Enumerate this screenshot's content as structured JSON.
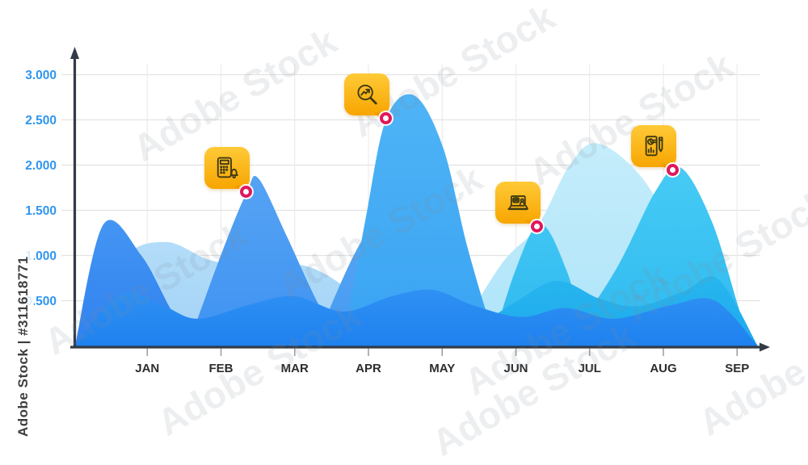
{
  "watermark": {
    "side_label": "Adobe Stock | #311618771",
    "ghost_text": "Adobe Stock"
  },
  "colors": {
    "axis": "#323b46",
    "grid_horizontal": "#e2e2e2",
    "grid_vertical": "#ececec",
    "y_tick_label": "#2f96ee",
    "x_tick_label": "#2c2c2c",
    "tick_mark": "#9b9b9b",
    "marker_ring": "#e0175b",
    "tooltip_gold_top": "#ffca38",
    "tooltip_gold_bottom": "#f7a500"
  },
  "chart_data": {
    "type": "area",
    "title": "",
    "x_labels": [
      "JAN",
      "FEB",
      "MAR",
      "APR",
      "MAY",
      "JUN",
      "JUL",
      "AUG",
      "SEP"
    ],
    "y_tick_labels": [
      "3.000",
      "2.500",
      "2.000",
      "1.500",
      "1.000",
      "0.500"
    ],
    "y_tick_values": [
      3.0,
      2.5,
      2.0,
      1.5,
      1.0,
      0.5
    ],
    "ylim": [
      0,
      3.3
    ],
    "xlim_months": [
      0,
      9.3
    ],
    "grid": true,
    "legend": false,
    "series": [
      {
        "name": "pale-blue-left",
        "color_top": "#b3ddf9",
        "color_bottom": "#a3d2f6",
        "points": [
          [
            0.02,
            0
          ],
          [
            0.65,
            0.95
          ],
          [
            1.25,
            1.15
          ],
          [
            1.85,
            0.95
          ],
          [
            2.51,
            0.86
          ],
          [
            3.17,
            0.88
          ],
          [
            3.83,
            0.55
          ],
          [
            4.43,
            0
          ]
        ]
      },
      {
        "name": "pale-cyan-july",
        "color_top": "#c5edfb",
        "color_bottom": "#aee4fa",
        "points": [
          [
            5.12,
            0
          ],
          [
            5.8,
            0.9
          ],
          [
            6.29,
            1.32
          ],
          [
            6.73,
            2.0
          ],
          [
            7.11,
            2.24
          ],
          [
            7.72,
            1.85
          ],
          [
            8.27,
            1.05
          ],
          [
            8.7,
            0.45
          ],
          [
            9.0,
            0
          ]
        ]
      },
      {
        "name": "blue-march-mid",
        "color_top": "#57a7f4",
        "color_bottom": "#4599f2",
        "points": [
          [
            3.26,
            0
          ],
          [
            3.94,
            1.2
          ],
          [
            4.48,
            1.42
          ],
          [
            5.14,
            1.0
          ],
          [
            5.85,
            0
          ]
        ]
      },
      {
        "name": "royal-blue-jan",
        "color_top": "#4495f3",
        "color_bottom": "#2f81ef",
        "points": [
          [
            0.02,
            0
          ],
          [
            0.41,
            1.35
          ],
          [
            0.92,
            1.0
          ],
          [
            1.36,
            0.35
          ],
          [
            1.72,
            0
          ]
        ]
      },
      {
        "name": "blue-feb",
        "color_top": "#55a3f4",
        "color_bottom": "#3e92f1",
        "points": [
          [
            1.55,
            0
          ],
          [
            2.02,
            1.05
          ],
          [
            2.35,
            1.7
          ],
          [
            2.51,
            1.85
          ],
          [
            2.9,
            1.2
          ],
          [
            3.33,
            0.45
          ],
          [
            3.7,
            0
          ]
        ]
      },
      {
        "name": "sky-blue-april",
        "color_top": "#4fb4f6",
        "color_bottom": "#39a3f3",
        "points": [
          [
            3.65,
            0
          ],
          [
            3.96,
            1.4
          ],
          [
            4.24,
            2.51
          ],
          [
            4.62,
            2.77
          ],
          [
            5.01,
            2.2
          ],
          [
            5.34,
            1.1
          ],
          [
            5.67,
            0.2
          ],
          [
            5.82,
            0
          ]
        ]
      },
      {
        "name": "cyan-june",
        "color_top": "#3fc6f3",
        "color_bottom": "#2fb7ef",
        "points": [
          [
            5.67,
            0
          ],
          [
            6.0,
            0.85
          ],
          [
            6.33,
            1.35
          ],
          [
            6.68,
            0.85
          ],
          [
            6.98,
            0
          ]
        ]
      },
      {
        "name": "cyan-august",
        "color_top": "#46cbf4",
        "color_bottom": "#2fb9f0",
        "points": [
          [
            6.68,
            0
          ],
          [
            7.36,
            0.85
          ],
          [
            7.9,
            1.72
          ],
          [
            8.24,
            1.97
          ],
          [
            8.67,
            1.35
          ],
          [
            9.07,
            0.3
          ],
          [
            9.28,
            0
          ]
        ]
      },
      {
        "name": "deep-cyan-bottom-right",
        "color_top": "#27b6ef",
        "color_bottom": "#1fa9ec",
        "points": [
          [
            5.1,
            0
          ],
          [
            6.02,
            0.5
          ],
          [
            6.57,
            0.72
          ],
          [
            7.14,
            0.52
          ],
          [
            7.66,
            0.44
          ],
          [
            8.27,
            0.6
          ],
          [
            8.74,
            0.74
          ],
          [
            9.28,
            0
          ]
        ]
      },
      {
        "name": "bright-blue-front",
        "color_top": "#2f91f3",
        "color_bottom": "#1e81ef",
        "points": [
          [
            0.02,
            0
          ],
          [
            0.65,
            0.58
          ],
          [
            1.2,
            0.45
          ],
          [
            1.69,
            0.3
          ],
          [
            2.4,
            0.46
          ],
          [
            3.0,
            0.55
          ],
          [
            3.66,
            0.38
          ],
          [
            4.32,
            0.55
          ],
          [
            4.87,
            0.62
          ],
          [
            5.42,
            0.45
          ],
          [
            6.07,
            0.32
          ],
          [
            6.68,
            0.42
          ],
          [
            7.33,
            0.3
          ],
          [
            8.1,
            0.45
          ],
          [
            8.7,
            0.5
          ],
          [
            9.28,
            0
          ]
        ]
      }
    ],
    "markers": [
      {
        "x_month": 2.35,
        "value": 1.7,
        "icon": "calculator-alarm-icon"
      },
      {
        "x_month": 4.24,
        "value": 2.51,
        "icon": "search-analytics-icon"
      },
      {
        "x_month": 6.29,
        "value": 1.32,
        "icon": "laptop-percent-icon"
      },
      {
        "x_month": 8.13,
        "value": 1.94,
        "icon": "report-edit-icon"
      }
    ]
  }
}
